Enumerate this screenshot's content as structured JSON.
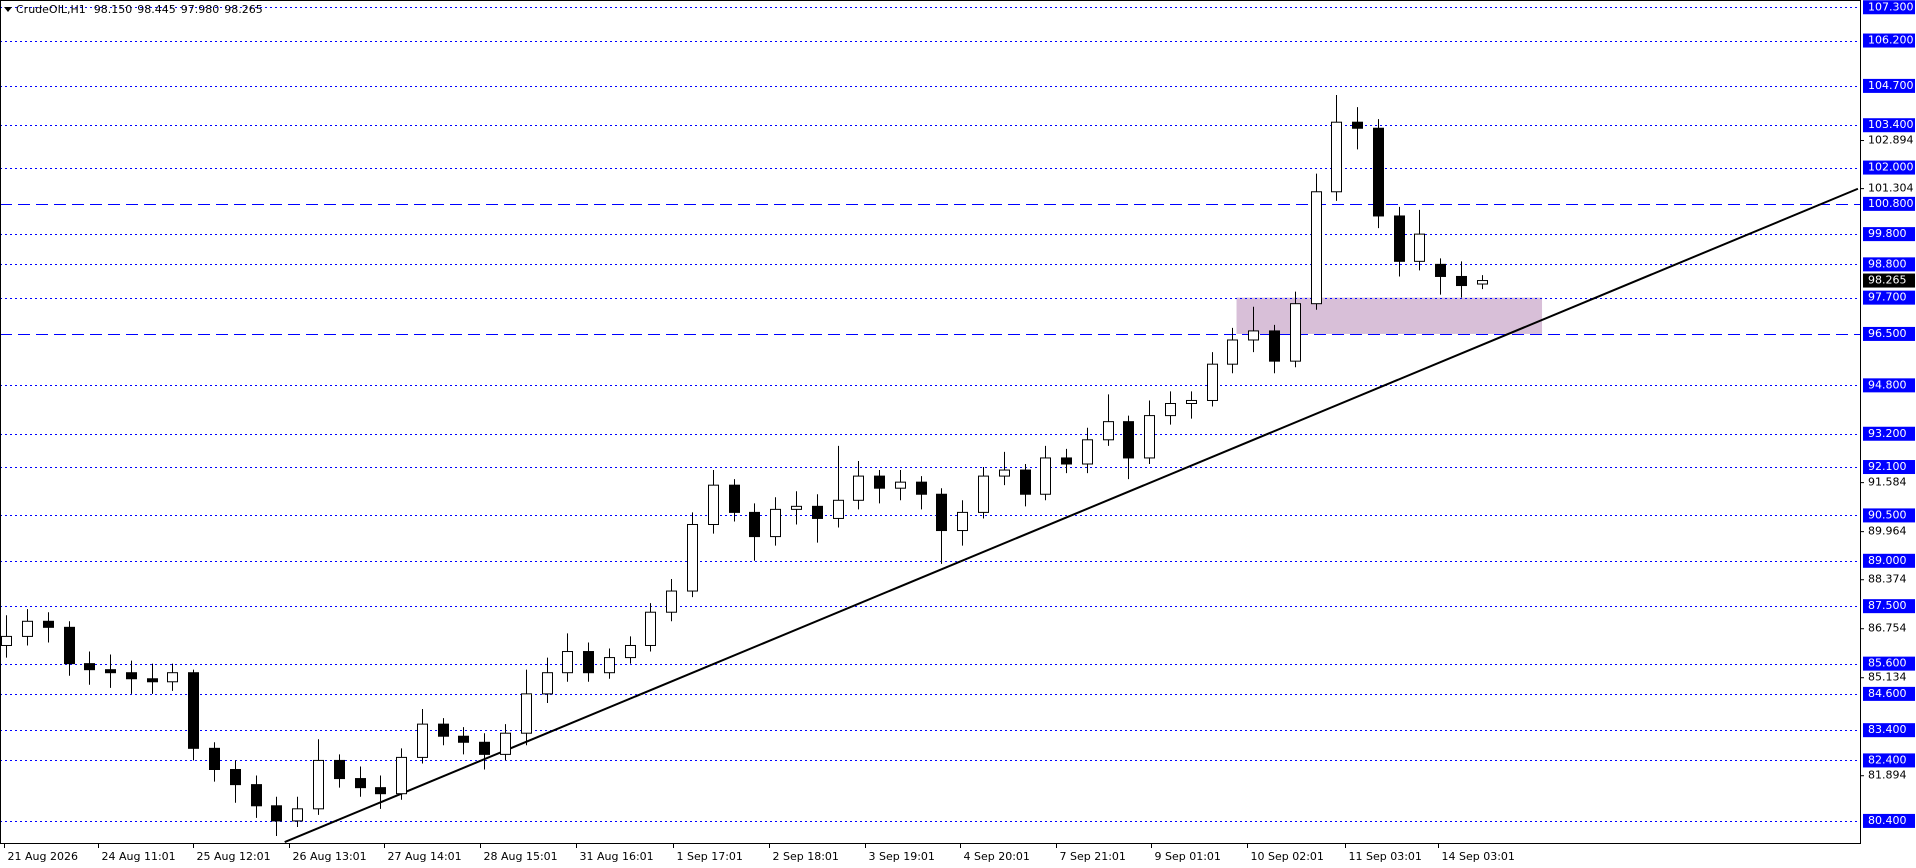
{
  "chart_data": {
    "type": "candlestick",
    "header": {
      "symbol": "CrudeOIL,H1",
      "ohlc": [
        "98.150",
        "98.445",
        "97.980",
        "98.265"
      ]
    },
    "xlim": [
      -0.3,
      89.2
    ],
    "ylim": [
      79.67,
      107.54
    ],
    "xticks": [
      {
        "value": -0.1,
        "label": "21 Aug 2026"
      },
      {
        "value": 4.4,
        "label": "24 Aug 11:01"
      },
      {
        "value": 9.0,
        "label": "25 Aug 12:01"
      },
      {
        "value": 13.6,
        "label": "26 Aug 13:01"
      },
      {
        "value": 18.2,
        "label": "27 Aug 14:01"
      },
      {
        "value": 22.8,
        "label": "28 Aug 15:01"
      },
      {
        "value": 27.4,
        "label": "31 Aug 16:01"
      },
      {
        "value": 32.1,
        "label": "1 Sep 17:01"
      },
      {
        "value": 36.7,
        "label": "2 Sep 18:01"
      },
      {
        "value": 41.3,
        "label": "3 Sep 19:01"
      },
      {
        "value": 45.9,
        "label": "4 Sep 20:01"
      },
      {
        "value": 50.5,
        "label": "7 Sep 21:01"
      },
      {
        "value": 55.1,
        "label": "9 Sep 01:01"
      },
      {
        "value": 59.7,
        "label": "10 Sep 02:01"
      },
      {
        "value": 64.4,
        "label": "11 Sep 03:01"
      },
      {
        "value": 68.9,
        "label": "14 Sep 03:01"
      }
    ],
    "yticks": [
      {
        "value": 102.894,
        "label": "102.894"
      },
      {
        "value": 101.304,
        "label": "101.304"
      },
      {
        "value": 91.584,
        "label": "91.584"
      },
      {
        "value": 89.964,
        "label": "89.964"
      },
      {
        "value": 88.374,
        "label": "88.374"
      },
      {
        "value": 86.754,
        "label": "86.754"
      },
      {
        "value": 85.134,
        "label": "85.134"
      },
      {
        "value": 81.894,
        "label": "81.894"
      }
    ],
    "levels": [
      {
        "value": 107.3,
        "label": "107.300",
        "line": "dotted"
      },
      {
        "value": 106.2,
        "label": "106.200",
        "line": "dotted"
      },
      {
        "value": 104.7,
        "label": "104.700",
        "line": "dotted"
      },
      {
        "value": 103.4,
        "label": "103.400",
        "line": "dotted"
      },
      {
        "value": 102.0,
        "label": "102.000",
        "line": "dotted"
      },
      {
        "value": 100.8,
        "label": "100.800",
        "line": "dashed"
      },
      {
        "value": 99.8,
        "label": "99.800",
        "line": "dotted"
      },
      {
        "value": 98.8,
        "label": "98.800",
        "line": "dotted"
      },
      {
        "value": 97.7,
        "label": "97.700",
        "line": "dotted"
      },
      {
        "value": 96.5,
        "label": "96.500",
        "line": "dashed"
      },
      {
        "value": 94.8,
        "label": "94.800",
        "line": "dotted"
      },
      {
        "value": 93.2,
        "label": "93.200",
        "line": "dotted"
      },
      {
        "value": 92.1,
        "label": "92.100",
        "line": "dotted"
      },
      {
        "value": 90.5,
        "label": "90.500",
        "line": "dotted"
      },
      {
        "value": 89.0,
        "label": "89.000",
        "line": "dotted"
      },
      {
        "value": 87.5,
        "label": "87.500",
        "line": "dotted"
      },
      {
        "value": 85.6,
        "label": "85.600",
        "line": "dotted"
      },
      {
        "value": 84.6,
        "label": "84.600",
        "line": "dotted"
      },
      {
        "value": 83.4,
        "label": "83.400",
        "line": "dotted"
      },
      {
        "value": 82.4,
        "label": "82.400",
        "line": "dotted"
      },
      {
        "value": 80.4,
        "label": "80.400",
        "line": "dotted"
      }
    ],
    "level_color": "#0000ff",
    "candles": {
      "open": [
        86.2,
        86.5,
        87.0,
        86.8,
        85.6,
        85.4,
        85.3,
        85.1,
        85.0,
        85.3,
        82.8,
        82.1,
        81.6,
        80.9,
        80.4,
        80.8,
        82.4,
        81.8,
        81.5,
        81.3,
        82.5,
        83.6,
        83.2,
        83.0,
        82.6,
        83.3,
        84.6,
        85.3,
        86.0,
        85.3,
        85.8,
        86.2,
        87.3,
        88.0,
        90.2,
        91.5,
        90.6,
        89.8,
        90.7,
        90.8,
        90.4,
        91.0,
        91.8,
        91.4,
        91.6,
        91.2,
        90.0,
        90.6,
        91.8,
        92.0,
        91.2,
        92.4,
        92.2,
        93.0,
        93.6,
        92.4,
        93.8,
        94.2,
        94.3,
        95.5,
        96.3,
        96.6,
        95.6,
        97.5,
        101.2,
        103.5,
        103.3,
        100.4,
        98.9,
        98.8,
        98.4,
        98.15
      ],
      "high": [
        87.2,
        87.4,
        87.3,
        87.0,
        86.0,
        85.9,
        85.7,
        85.6,
        85.6,
        85.4,
        83.0,
        82.4,
        81.9,
        81.2,
        81.2,
        83.1,
        82.6,
        82.2,
        81.9,
        82.8,
        84.1,
        83.8,
        83.5,
        83.3,
        83.6,
        85.4,
        85.8,
        86.6,
        86.3,
        86.1,
        86.5,
        87.6,
        88.4,
        90.6,
        92.0,
        91.7,
        90.9,
        91.1,
        91.3,
        91.2,
        92.8,
        92.3,
        92.0,
        92.0,
        91.8,
        91.4,
        91.0,
        92.1,
        92.6,
        92.2,
        92.8,
        92.7,
        93.4,
        94.5,
        93.8,
        94.3,
        94.6,
        94.6,
        95.9,
        96.7,
        97.4,
        96.8,
        97.9,
        101.8,
        104.4,
        104.0,
        103.6,
        100.7,
        100.6,
        99.0,
        98.9,
        98.445
      ],
      "low": [
        85.8,
        86.2,
        86.3,
        85.2,
        84.9,
        84.8,
        84.6,
        84.6,
        84.7,
        82.4,
        81.7,
        81.0,
        80.5,
        79.9,
        80.2,
        80.6,
        81.5,
        81.2,
        80.8,
        81.1,
        82.3,
        82.9,
        82.6,
        82.1,
        82.4,
        82.9,
        84.3,
        85.0,
        85.0,
        85.1,
        85.6,
        86.0,
        87.0,
        87.8,
        89.9,
        90.3,
        89.0,
        89.5,
        90.2,
        89.6,
        90.1,
        90.7,
        90.9,
        91.0,
        90.7,
        88.9,
        89.5,
        90.4,
        91.5,
        90.8,
        91.0,
        91.9,
        91.9,
        92.8,
        91.7,
        92.2,
        93.5,
        93.7,
        94.1,
        95.2,
        95.9,
        95.2,
        95.4,
        97.3,
        100.9,
        102.6,
        100.0,
        98.4,
        98.6,
        97.8,
        97.7,
        97.98
      ],
      "close": [
        86.5,
        87.0,
        86.8,
        85.6,
        85.4,
        85.3,
        85.1,
        85.0,
        85.3,
        82.8,
        82.1,
        81.6,
        80.9,
        80.4,
        80.8,
        82.4,
        81.8,
        81.5,
        81.3,
        82.5,
        83.6,
        83.2,
        83.0,
        82.6,
        83.3,
        84.6,
        85.3,
        86.0,
        85.3,
        85.8,
        86.2,
        87.3,
        88.0,
        90.2,
        91.5,
        90.6,
        89.8,
        90.7,
        90.8,
        90.4,
        91.0,
        91.8,
        91.4,
        91.6,
        91.2,
        90.0,
        90.6,
        91.8,
        92.0,
        91.2,
        92.4,
        92.2,
        93.0,
        93.6,
        92.4,
        93.8,
        94.2,
        94.3,
        95.5,
        96.3,
        96.6,
        95.6,
        97.5,
        101.2,
        103.5,
        103.3,
        100.4,
        98.9,
        99.8,
        98.4,
        98.1,
        98.265
      ]
    },
    "trendline": {
      "x": [
        13.4,
        89.1
      ],
      "y": [
        79.7,
        101.3
      ],
      "color": "#000000"
    },
    "zone": {
      "x": [
        59.2,
        73.9
      ],
      "y": [
        96.5,
        97.7
      ],
      "color": "#d8bfd8"
    }
  }
}
